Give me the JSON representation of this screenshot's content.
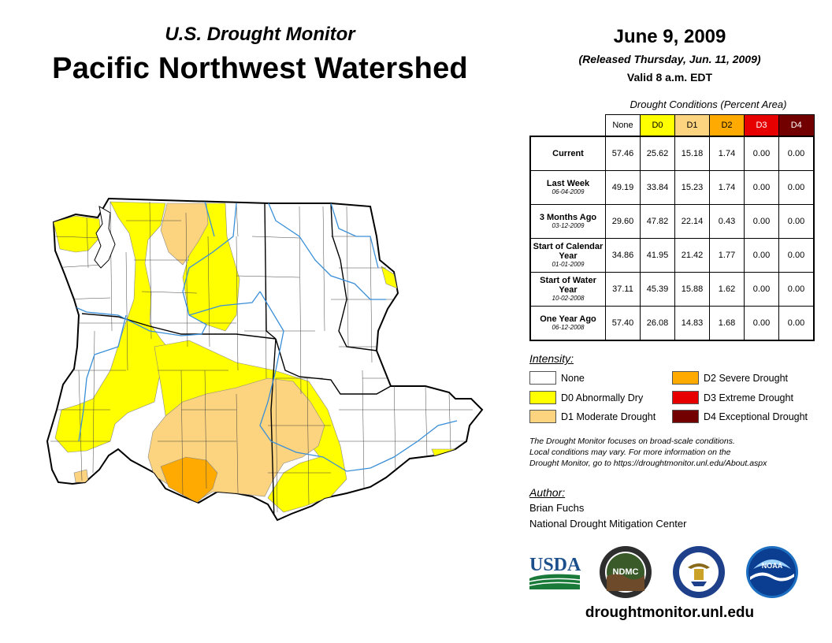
{
  "header": {
    "monitor_title": "U.S. Drought Monitor",
    "region_title": "Pacific Northwest Watershed",
    "date": "June 9, 2009",
    "released": "(Released Thursday, Jun. 11, 2009)",
    "valid": "Valid 8 a.m. EDT"
  },
  "conditions": {
    "caption": "Drought Conditions (Percent Area)",
    "columns": [
      "None",
      "D0",
      "D1",
      "D2",
      "D3",
      "D4"
    ],
    "rows": [
      {
        "label": "Current",
        "sublabel": "",
        "values": [
          "57.46",
          "25.62",
          "15.18",
          "1.74",
          "0.00",
          "0.00"
        ]
      },
      {
        "label": "Last Week",
        "sublabel": "06-04-2009",
        "values": [
          "49.19",
          "33.84",
          "15.23",
          "1.74",
          "0.00",
          "0.00"
        ]
      },
      {
        "label": "3 Months Ago",
        "sublabel": "03-12-2009",
        "values": [
          "29.60",
          "47.82",
          "22.14",
          "0.43",
          "0.00",
          "0.00"
        ]
      },
      {
        "label": "Start of Calendar Year",
        "sublabel": "01-01-2009",
        "values": [
          "34.86",
          "41.95",
          "21.42",
          "1.77",
          "0.00",
          "0.00"
        ]
      },
      {
        "label": "Start of Water Year",
        "sublabel": "10-02-2008",
        "values": [
          "37.11",
          "45.39",
          "15.88",
          "1.62",
          "0.00",
          "0.00"
        ]
      },
      {
        "label": "One Year Ago",
        "sublabel": "06-12-2008",
        "values": [
          "57.40",
          "26.08",
          "14.83",
          "1.68",
          "0.00",
          "0.00"
        ]
      }
    ]
  },
  "legend": {
    "title": "Intensity:",
    "items": [
      {
        "label": "None",
        "color": "#ffffff"
      },
      {
        "label": "D0 Abnormally Dry",
        "color": "#ffff00"
      },
      {
        "label": "D1 Moderate Drought",
        "color": "#fcd37f"
      },
      {
        "label": "D2 Severe Drought",
        "color": "#ffaa00"
      },
      {
        "label": "D3 Extreme Drought",
        "color": "#e60000"
      },
      {
        "label": "D4 Exceptional Drought",
        "color": "#730000"
      }
    ]
  },
  "note": {
    "line1": "The Drought Monitor focuses on broad-scale conditions.",
    "line2": "Local conditions may vary. For more information on the",
    "line3": "Drought Monitor, go to https://droughtmonitor.unl.edu/About.aspx"
  },
  "author": {
    "title": "Author:",
    "name": "Brian Fuchs",
    "org": "National Drought Mitigation Center"
  },
  "logos": {
    "usda": "USDA",
    "ndmc": "NDMC",
    "noaa": "NOAA",
    "doc_icon": "eagle-seal-icon"
  },
  "website": "droughtmonitor.unl.edu"
}
